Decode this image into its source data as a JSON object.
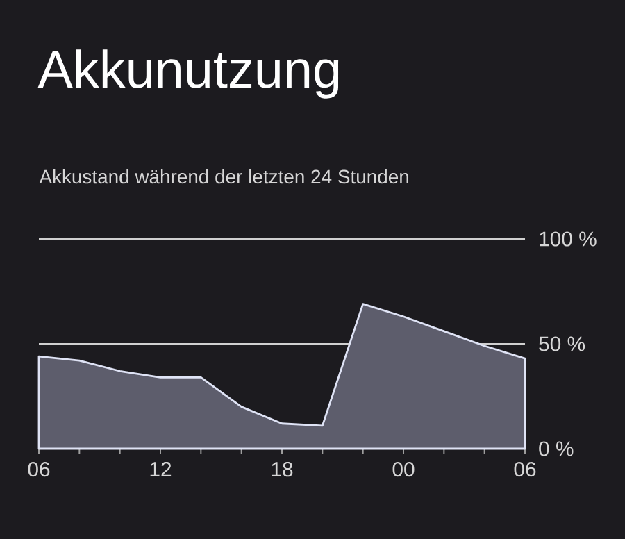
{
  "chart_data": {
    "type": "area",
    "title": "Akkunutzung",
    "subtitle": "Akkustand während der letzten 24 Stunden",
    "categories": [
      "06",
      null,
      null,
      "12",
      null,
      null,
      "18",
      null,
      null,
      "00",
      null,
      null,
      "06"
    ],
    "series": [
      {
        "color": "#5d5d6c",
        "values": [
          44,
          42,
          37,
          34,
          34,
          20,
          12,
          11,
          69,
          63,
          56,
          49,
          43
        ]
      }
    ],
    "ylim": [
      0,
      100
    ],
    "yticks": [
      {
        "value": 0,
        "label": "0 %"
      },
      {
        "value": 50,
        "label": "50 %"
      },
      {
        "value": 100,
        "label": "100 %"
      }
    ],
    "grid": "y"
  }
}
